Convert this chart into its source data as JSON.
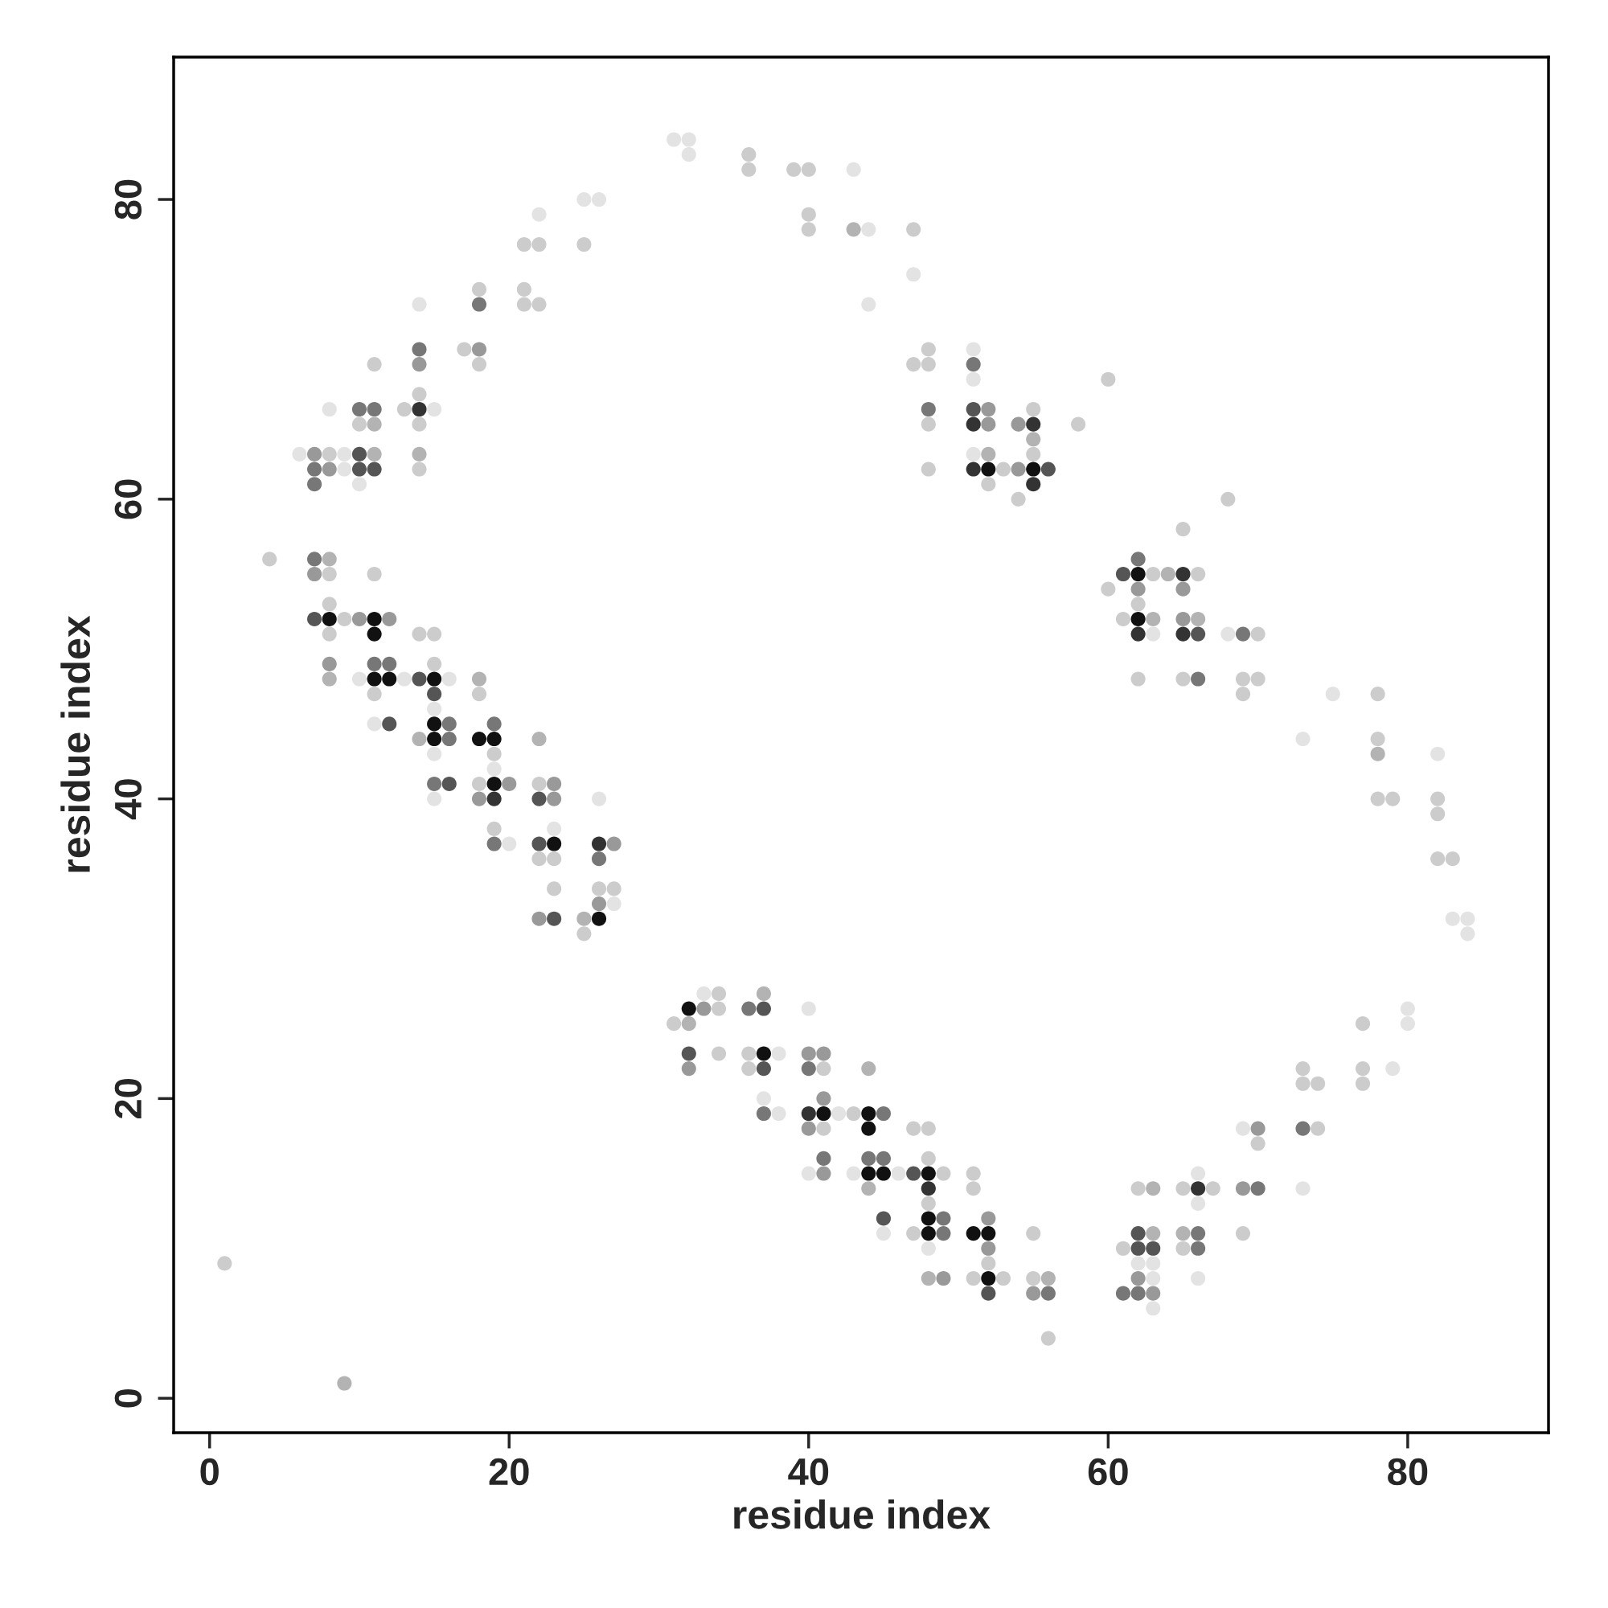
{
  "chart_data": {
    "type": "scatter",
    "xlabel": "residue index",
    "ylabel": "residue index",
    "marker": "circle",
    "xlim": [
      -2.4,
      89.4
    ],
    "ylim": [
      -2.3,
      89.5
    ],
    "xticks": [
      0,
      20,
      40,
      60,
      80
    ],
    "yticks": [
      0,
      20,
      40,
      60,
      80
    ],
    "series": [
      {
        "x": [
          1,
          9
        ],
        "values": [
          9,
          1
        ],
        "colors": [
          "#cccccc",
          "#b3b3b3"
        ]
      },
      {
        "x": [
          4,
          7,
          8
        ],
        "values": [
          56,
          56,
          56
        ],
        "colors": [
          "#cccccc",
          "#777777",
          "#b3b3b3"
        ]
      },
      {
        "x": [
          7,
          8,
          11
        ],
        "values": [
          55,
          55,
          55
        ],
        "colors": [
          "#999999",
          "#cccccc",
          "#cccccc"
        ]
      },
      {
        "x": [
          8
        ],
        "values": [
          53
        ],
        "colors": [
          "#cccccc"
        ]
      },
      {
        "x": [
          7,
          8,
          9,
          10,
          11,
          12
        ],
        "values": [
          52,
          52,
          52,
          52,
          52,
          52
        ],
        "colors": [
          "#555555",
          "#111111",
          "#cccccc",
          "#999999",
          "#111111",
          "#999999"
        ]
      },
      {
        "x": [
          8,
          11,
          14,
          15
        ],
        "values": [
          51,
          51,
          51,
          51
        ],
        "colors": [
          "#cccccc",
          "#111111",
          "#cccccc",
          "#cccccc"
        ]
      },
      {
        "x": [
          8,
          11,
          12,
          15
        ],
        "values": [
          49,
          49,
          49,
          49
        ],
        "colors": [
          "#999999",
          "#777777",
          "#777777",
          "#cccccc"
        ]
      },
      {
        "x": [
          8,
          10,
          11,
          12,
          13,
          14,
          15,
          16,
          18
        ],
        "values": [
          48,
          48,
          48,
          48,
          48,
          48,
          48,
          48,
          48
        ],
        "colors": [
          "#b3b3b3",
          "#e3e3e3",
          "#111111",
          "#111111",
          "#e3e3e3",
          "#555555",
          "#111111",
          "#e3e3e3",
          "#b3b3b3"
        ]
      },
      {
        "x": [
          11,
          15,
          18
        ],
        "values": [
          47,
          47,
          47
        ],
        "colors": [
          "#cccccc",
          "#555555",
          "#cccccc"
        ]
      },
      {
        "x": [
          15
        ],
        "values": [
          46
        ],
        "colors": [
          "#e3e3e3"
        ]
      },
      {
        "x": [
          11,
          12,
          15,
          16,
          19
        ],
        "values": [
          45,
          45,
          45,
          45,
          45
        ],
        "colors": [
          "#e3e3e3",
          "#555555",
          "#111111",
          "#777777",
          "#777777"
        ]
      },
      {
        "x": [
          14,
          15,
          16,
          18,
          19,
          22
        ],
        "values": [
          44,
          44,
          44,
          44,
          44,
          44
        ],
        "colors": [
          "#b3b3b3",
          "#111111",
          "#777777",
          "#111111",
          "#111111",
          "#b3b3b3"
        ]
      },
      {
        "x": [
          15,
          19
        ],
        "values": [
          43,
          43
        ],
        "colors": [
          "#e3e3e3",
          "#cccccc"
        ]
      },
      {
        "x": [
          19
        ],
        "values": [
          42
        ],
        "colors": [
          "#e3e3e3"
        ]
      },
      {
        "x": [
          15,
          16,
          18,
          19,
          20,
          22,
          23
        ],
        "values": [
          41,
          41,
          41,
          41,
          41,
          41,
          41
        ],
        "colors": [
          "#777777",
          "#555555",
          "#cccccc",
          "#111111",
          "#999999",
          "#cccccc",
          "#999999"
        ]
      },
      {
        "x": [
          15,
          18,
          19,
          22,
          23,
          26
        ],
        "values": [
          40,
          40,
          40,
          40,
          40,
          40
        ],
        "colors": [
          "#e3e3e3",
          "#999999",
          "#333333",
          "#555555",
          "#999999",
          "#e3e3e3"
        ]
      },
      {
        "x": [
          19,
          23
        ],
        "values": [
          38,
          38
        ],
        "colors": [
          "#cccccc",
          "#e3e3e3"
        ]
      },
      {
        "x": [
          19,
          20,
          22,
          23,
          26,
          27
        ],
        "values": [
          37,
          37,
          37,
          37,
          37,
          37
        ],
        "colors": [
          "#777777",
          "#e3e3e3",
          "#555555",
          "#111111",
          "#333333",
          "#999999"
        ]
      },
      {
        "x": [
          22,
          23,
          26
        ],
        "values": [
          36,
          36,
          36
        ],
        "colors": [
          "#cccccc",
          "#cccccc",
          "#777777"
        ]
      },
      {
        "x": [
          23,
          26,
          27
        ],
        "values": [
          34,
          34,
          34
        ],
        "colors": [
          "#cccccc",
          "#cccccc",
          "#cccccc"
        ]
      },
      {
        "x": [
          26,
          27
        ],
        "values": [
          33,
          33
        ],
        "colors": [
          "#999999",
          "#e3e3e3"
        ]
      },
      {
        "x": [
          22,
          23,
          25,
          26
        ],
        "values": [
          32,
          32,
          32,
          32
        ],
        "colors": [
          "#999999",
          "#555555",
          "#b3b3b3",
          "#111111"
        ]
      },
      {
        "x": [
          25
        ],
        "values": [
          31
        ],
        "colors": [
          "#cccccc"
        ]
      },
      {
        "x": [
          25,
          26
        ],
        "values": [
          80,
          80
        ],
        "colors": [
          "#e3e3e3",
          "#e3e3e3"
        ]
      },
      {
        "x": [
          22
        ],
        "values": [
          79
        ],
        "colors": [
          "#e3e3e3"
        ]
      },
      {
        "x": [
          21,
          22,
          25
        ],
        "values": [
          77,
          77,
          77
        ],
        "colors": [
          "#cccccc",
          "#cccccc",
          "#cccccc"
        ]
      },
      {
        "x": [
          18,
          21
        ],
        "values": [
          74,
          74
        ],
        "colors": [
          "#cccccc",
          "#cccccc"
        ]
      },
      {
        "x": [
          14,
          18,
          21,
          22
        ],
        "values": [
          73,
          73,
          73,
          73
        ],
        "colors": [
          "#e3e3e3",
          "#777777",
          "#cccccc",
          "#cccccc"
        ]
      },
      {
        "x": [
          14,
          17,
          18
        ],
        "values": [
          70,
          70,
          70
        ],
        "colors": [
          "#777777",
          "#cccccc",
          "#999999"
        ]
      },
      {
        "x": [
          11,
          14,
          18
        ],
        "values": [
          69,
          69,
          69
        ],
        "colors": [
          "#cccccc",
          "#999999",
          "#cccccc"
        ]
      },
      {
        "x": [
          14
        ],
        "values": [
          67
        ],
        "colors": [
          "#cccccc"
        ]
      },
      {
        "x": [
          8,
          10,
          11,
          13,
          14,
          15
        ],
        "values": [
          66,
          66,
          66,
          66,
          66,
          66
        ],
        "colors": [
          "#e3e3e3",
          "#777777",
          "#777777",
          "#cccccc",
          "#333333",
          "#e3e3e3"
        ]
      },
      {
        "x": [
          10,
          11,
          14
        ],
        "values": [
          65,
          65,
          65
        ],
        "colors": [
          "#cccccc",
          "#b3b3b3",
          "#cccccc"
        ]
      },
      {
        "x": [
          6,
          7,
          8,
          9,
          10,
          11,
          14
        ],
        "values": [
          63,
          63,
          63,
          63,
          63,
          63,
          63
        ],
        "colors": [
          "#e3e3e3",
          "#999999",
          "#cccccc",
          "#e3e3e3",
          "#555555",
          "#b3b3b3",
          "#b3b3b3"
        ]
      },
      {
        "x": [
          7,
          8,
          9,
          10,
          11,
          14
        ],
        "values": [
          62,
          62,
          62,
          62,
          62,
          62
        ],
        "colors": [
          "#777777",
          "#999999",
          "#e3e3e3",
          "#555555",
          "#555555",
          "#cccccc"
        ]
      },
      {
        "x": [
          7,
          10
        ],
        "values": [
          61,
          61
        ],
        "colors": [
          "#777777",
          "#e3e3e3"
        ]
      },
      {
        "x": [
          31,
          32
        ],
        "values": [
          84,
          84
        ],
        "colors": [
          "#e3e3e3",
          "#e3e3e3"
        ]
      },
      {
        "x": [
          32,
          36
        ],
        "values": [
          83,
          83
        ],
        "colors": [
          "#e3e3e3",
          "#cccccc"
        ]
      },
      {
        "x": [
          36,
          39,
          40,
          43
        ],
        "values": [
          82,
          82,
          82,
          82
        ],
        "colors": [
          "#cccccc",
          "#cccccc",
          "#cccccc",
          "#e3e3e3"
        ]
      },
      {
        "x": [
          40
        ],
        "values": [
          79
        ],
        "colors": [
          "#cccccc"
        ]
      },
      {
        "x": [
          40,
          43,
          44,
          47
        ],
        "values": [
          78,
          78,
          78,
          78
        ],
        "colors": [
          "#cccccc",
          "#b3b3b3",
          "#e3e3e3",
          "#cccccc"
        ]
      },
      {
        "x": [
          47
        ],
        "values": [
          75
        ],
        "colors": [
          "#e3e3e3"
        ]
      },
      {
        "x": [
          44
        ],
        "values": [
          73
        ],
        "colors": [
          "#e3e3e3"
        ]
      },
      {
        "x": [
          48,
          51
        ],
        "values": [
          70,
          70
        ],
        "colors": [
          "#cccccc",
          "#e3e3e3"
        ]
      },
      {
        "x": [
          47,
          48,
          51
        ],
        "values": [
          69,
          69,
          69
        ],
        "colors": [
          "#cccccc",
          "#cccccc",
          "#777777"
        ]
      },
      {
        "x": [
          51,
          60
        ],
        "values": [
          68,
          68
        ],
        "colors": [
          "#e3e3e3",
          "#cccccc"
        ]
      },
      {
        "x": [
          48,
          51,
          52,
          55
        ],
        "values": [
          66,
          66,
          66,
          66
        ],
        "colors": [
          "#777777",
          "#555555",
          "#999999",
          "#cccccc"
        ]
      },
      {
        "x": [
          48,
          51,
          52,
          54,
          55,
          58
        ],
        "values": [
          65,
          65,
          65,
          65,
          65,
          65
        ],
        "colors": [
          "#cccccc",
          "#333333",
          "#999999",
          "#999999",
          "#333333",
          "#cccccc"
        ]
      },
      {
        "x": [
          55
        ],
        "values": [
          64
        ],
        "colors": [
          "#b3b3b3"
        ]
      },
      {
        "x": [
          51,
          52,
          55
        ],
        "values": [
          63,
          63,
          63
        ],
        "colors": [
          "#e3e3e3",
          "#b3b3b3",
          "#cccccc"
        ]
      },
      {
        "x": [
          48,
          51,
          52,
          53,
          54,
          55,
          56
        ],
        "values": [
          62,
          62,
          62,
          62,
          62,
          62,
          62
        ],
        "colors": [
          "#cccccc",
          "#333333",
          "#111111",
          "#cccccc",
          "#999999",
          "#111111",
          "#555555"
        ]
      },
      {
        "x": [
          52,
          55
        ],
        "values": [
          61,
          61
        ],
        "colors": [
          "#cccccc",
          "#333333"
        ]
      },
      {
        "x": [
          54,
          68
        ],
        "values": [
          60,
          60
        ],
        "colors": [
          "#cccccc",
          "#cccccc"
        ]
      },
      {
        "x": [
          65
        ],
        "values": [
          58
        ],
        "colors": [
          "#cccccc"
        ]
      },
      {
        "x": [
          62
        ],
        "values": [
          56
        ],
        "colors": [
          "#777777"
        ]
      },
      {
        "x": [
          61,
          62,
          63,
          64,
          65,
          66
        ],
        "values": [
          55,
          55,
          55,
          55,
          55,
          55
        ],
        "colors": [
          "#555555",
          "#111111",
          "#cccccc",
          "#b3b3b3",
          "#333333",
          "#cccccc"
        ]
      },
      {
        "x": [
          60,
          62,
          65
        ],
        "values": [
          54,
          54,
          54
        ],
        "colors": [
          "#cccccc",
          "#999999",
          "#999999"
        ]
      },
      {
        "x": [
          62
        ],
        "values": [
          53
        ],
        "colors": [
          "#cccccc"
        ]
      },
      {
        "x": [
          61,
          62,
          63,
          65,
          66
        ],
        "values": [
          52,
          52,
          52,
          52,
          52
        ],
        "colors": [
          "#cccccc",
          "#111111",
          "#b3b3b3",
          "#999999",
          "#b3b3b3"
        ]
      },
      {
        "x": [
          62,
          63,
          65,
          66,
          68,
          69,
          70
        ],
        "values": [
          51,
          51,
          51,
          51,
          51,
          51,
          51
        ],
        "colors": [
          "#333333",
          "#e3e3e3",
          "#333333",
          "#555555",
          "#e3e3e3",
          "#777777",
          "#cccccc"
        ]
      },
      {
        "x": [
          62,
          65,
          66,
          69,
          70
        ],
        "values": [
          48,
          48,
          48,
          48,
          48
        ],
        "colors": [
          "#cccccc",
          "#cccccc",
          "#777777",
          "#cccccc",
          "#cccccc"
        ]
      },
      {
        "x": [
          69,
          75,
          78
        ],
        "values": [
          47,
          47,
          47
        ],
        "colors": [
          "#cccccc",
          "#e3e3e3",
          "#cccccc"
        ]
      },
      {
        "x": [
          73,
          78
        ],
        "values": [
          44,
          44
        ],
        "colors": [
          "#e3e3e3",
          "#cccccc"
        ]
      },
      {
        "x": [
          78,
          82
        ],
        "values": [
          43,
          43
        ],
        "colors": [
          "#b3b3b3",
          "#e3e3e3"
        ]
      },
      {
        "x": [
          78,
          79,
          82
        ],
        "values": [
          40,
          40,
          40
        ],
        "colors": [
          "#cccccc",
          "#cccccc",
          "#cccccc"
        ]
      },
      {
        "x": [
          82
        ],
        "values": [
          39
        ],
        "colors": [
          "#cccccc"
        ]
      },
      {
        "x": [
          82,
          83
        ],
        "values": [
          36,
          36
        ],
        "colors": [
          "#cccccc",
          "#cccccc"
        ]
      },
      {
        "x": [
          83,
          84
        ],
        "values": [
          32,
          32
        ],
        "colors": [
          "#e3e3e3",
          "#e3e3e3"
        ]
      },
      {
        "x": [
          84
        ],
        "values": [
          31
        ],
        "colors": [
          "#e3e3e3"
        ]
      },
      {
        "x": [
          33,
          34,
          37
        ],
        "values": [
          27,
          27,
          27
        ],
        "colors": [
          "#e3e3e3",
          "#cccccc",
          "#b3b3b3"
        ]
      },
      {
        "x": [
          32,
          33,
          34,
          36,
          37,
          40,
          80
        ],
        "values": [
          26,
          26,
          26,
          26,
          26,
          26,
          26
        ],
        "colors": [
          "#111111",
          "#999999",
          "#cccccc",
          "#777777",
          "#555555",
          "#e3e3e3",
          "#e3e3e3"
        ]
      },
      {
        "x": [
          31,
          32,
          77,
          80
        ],
        "values": [
          25,
          25,
          25,
          25
        ],
        "colors": [
          "#cccccc",
          "#b3b3b3",
          "#cccccc",
          "#e3e3e3"
        ]
      },
      {
        "x": [
          32,
          34,
          36,
          37,
          38,
          40,
          41
        ],
        "values": [
          23,
          23,
          23,
          23,
          23,
          23,
          23
        ],
        "colors": [
          "#555555",
          "#cccccc",
          "#cccccc",
          "#111111",
          "#e3e3e3",
          "#999999",
          "#999999"
        ]
      },
      {
        "x": [
          32,
          36,
          37,
          40,
          41,
          44,
          73,
          77,
          79
        ],
        "values": [
          22,
          22,
          22,
          22,
          22,
          22,
          22,
          22,
          22
        ],
        "colors": [
          "#999999",
          "#cccccc",
          "#555555",
          "#777777",
          "#cccccc",
          "#b3b3b3",
          "#cccccc",
          "#cccccc",
          "#e3e3e3"
        ]
      },
      {
        "x": [
          73,
          74,
          77
        ],
        "values": [
          21,
          21,
          21
        ],
        "colors": [
          "#cccccc",
          "#cccccc",
          "#cccccc"
        ]
      },
      {
        "x": [
          37,
          41
        ],
        "values": [
          20,
          20
        ],
        "colors": [
          "#e3e3e3",
          "#999999"
        ]
      },
      {
        "x": [
          37,
          38,
          40,
          41,
          42,
          43,
          44,
          45
        ],
        "values": [
          19,
          19,
          19,
          19,
          19,
          19,
          19,
          19
        ],
        "colors": [
          "#777777",
          "#e3e3e3",
          "#333333",
          "#111111",
          "#e3e3e3",
          "#cccccc",
          "#111111",
          "#777777"
        ]
      },
      {
        "x": [
          40,
          41,
          44,
          47,
          48,
          69,
          70,
          73,
          74
        ],
        "values": [
          18,
          18,
          18,
          18,
          18,
          18,
          18,
          18,
          18
        ],
        "colors": [
          "#999999",
          "#cccccc",
          "#111111",
          "#cccccc",
          "#cccccc",
          "#e3e3e3",
          "#999999",
          "#777777",
          "#cccccc"
        ]
      },
      {
        "x": [
          70
        ],
        "values": [
          17
        ],
        "colors": [
          "#cccccc"
        ]
      },
      {
        "x": [
          41,
          44,
          45,
          48
        ],
        "values": [
          16,
          16,
          16,
          16
        ],
        "colors": [
          "#777777",
          "#777777",
          "#777777",
          "#cccccc"
        ]
      },
      {
        "x": [
          40,
          41,
          43,
          44,
          45,
          46,
          47,
          48,
          49,
          51,
          66
        ],
        "values": [
          15,
          15,
          15,
          15,
          15,
          15,
          15,
          15,
          15,
          15,
          15
        ],
        "colors": [
          "#e3e3e3",
          "#999999",
          "#e3e3e3",
          "#111111",
          "#111111",
          "#e3e3e3",
          "#555555",
          "#111111",
          "#cccccc",
          "#cccccc",
          "#e3e3e3"
        ]
      },
      {
        "x": [
          44,
          48,
          51,
          62,
          63,
          65,
          66,
          67,
          69,
          70,
          73
        ],
        "values": [
          14,
          14,
          14,
          14,
          14,
          14,
          14,
          14,
          14,
          14,
          14
        ],
        "colors": [
          "#b3b3b3",
          "#333333",
          "#cccccc",
          "#cccccc",
          "#b3b3b3",
          "#cccccc",
          "#333333",
          "#cccccc",
          "#999999",
          "#777777",
          "#e3e3e3"
        ]
      },
      {
        "x": [
          48,
          66
        ],
        "values": [
          13,
          13
        ],
        "colors": [
          "#cccccc",
          "#e3e3e3"
        ]
      },
      {
        "x": [
          45,
          48,
          49,
          52
        ],
        "values": [
          12,
          12,
          12,
          12
        ],
        "colors": [
          "#555555",
          "#111111",
          "#777777",
          "#999999"
        ]
      },
      {
        "x": [
          45,
          47,
          48,
          49,
          51,
          52,
          55,
          62,
          63,
          65,
          66,
          69
        ],
        "values": [
          11,
          11,
          11,
          11,
          11,
          11,
          11,
          11,
          11,
          11,
          11,
          11
        ],
        "colors": [
          "#e3e3e3",
          "#cccccc",
          "#111111",
          "#777777",
          "#111111",
          "#111111",
          "#cccccc",
          "#555555",
          "#b3b3b3",
          "#b3b3b3",
          "#777777",
          "#cccccc"
        ]
      },
      {
        "x": [
          48,
          52,
          61,
          62,
          63,
          65,
          66
        ],
        "values": [
          10,
          10,
          10,
          10,
          10,
          10,
          10
        ],
        "colors": [
          "#e3e3e3",
          "#999999",
          "#cccccc",
          "#555555",
          "#555555",
          "#cccccc",
          "#777777"
        ]
      },
      {
        "x": [
          52,
          62,
          63
        ],
        "values": [
          9,
          9,
          9
        ],
        "colors": [
          "#cccccc",
          "#e3e3e3",
          "#e3e3e3"
        ]
      },
      {
        "x": [
          48,
          49,
          51,
          52,
          53,
          55,
          56,
          62,
          63,
          66
        ],
        "values": [
          8,
          8,
          8,
          8,
          8,
          8,
          8,
          8,
          8,
          8
        ],
        "colors": [
          "#b3b3b3",
          "#999999",
          "#cccccc",
          "#111111",
          "#cccccc",
          "#cccccc",
          "#b3b3b3",
          "#999999",
          "#e3e3e3",
          "#e3e3e3"
        ]
      },
      {
        "x": [
          52,
          55,
          56,
          61,
          62,
          63
        ],
        "values": [
          7,
          7,
          7,
          7,
          7,
          7
        ],
        "colors": [
          "#555555",
          "#999999",
          "#777777",
          "#777777",
          "#777777",
          "#999999"
        ]
      },
      {
        "x": [
          63
        ],
        "values": [
          6
        ],
        "colors": [
          "#e3e3e3"
        ]
      },
      {
        "x": [
          56
        ],
        "values": [
          4
        ],
        "colors": [
          "#cccccc"
        ]
      }
    ]
  }
}
